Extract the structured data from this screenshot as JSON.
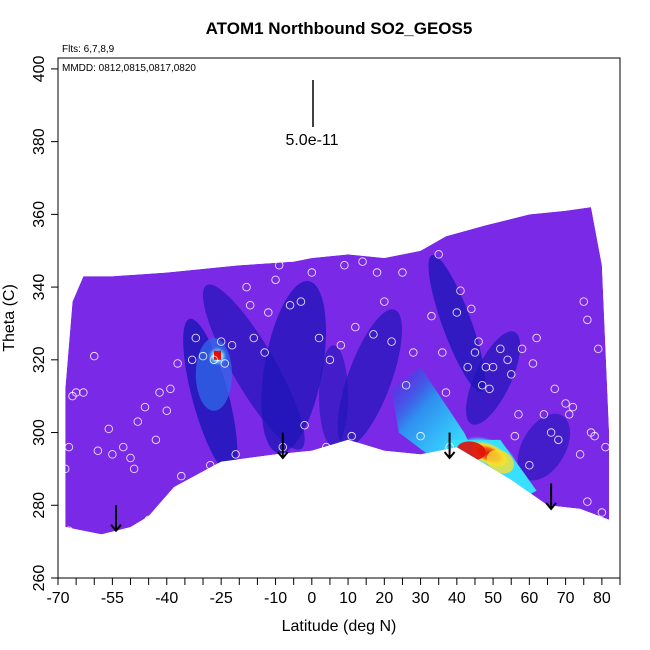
{
  "chart_data": {
    "type": "heatmap",
    "title": "ATOM1 Northbound SO2_GEOS5",
    "xlabel": "Latitude (deg N)",
    "ylabel": "Theta (C)",
    "xlim": [
      -70,
      85
    ],
    "ylim": [
      260,
      403
    ],
    "x_ticks": [
      -70,
      -55,
      -40,
      -25,
      -10,
      0,
      10,
      20,
      30,
      40,
      50,
      60,
      70,
      80
    ],
    "x_minor_ticks": [
      -65,
      -60,
      -50,
      -45,
      -35,
      -30,
      -20,
      -15,
      -5,
      5,
      15,
      25,
      35,
      45,
      55,
      65,
      75,
      85
    ],
    "y_ticks": [
      260,
      280,
      300,
      320,
      340,
      360,
      380,
      400
    ],
    "flights_note": "Flts: 6,7,8,9",
    "dates_note": "MMDD: 0812,0815,0817,0820",
    "scale_bar_label": "5.0e-11",
    "colors": {
      "background_field": "#7a2ae6",
      "low_trough": "#1f16b8",
      "mid": "#2f8ff0",
      "high_cyan": "#37e0ff",
      "peak_yellow": "#f8e030",
      "peak_red": "#e01008"
    },
    "domain_top_boundary": [
      [
        -68,
        312
      ],
      [
        -66,
        336
      ],
      [
        -63,
        343
      ],
      [
        -55,
        343
      ],
      [
        -40,
        344
      ],
      [
        -30,
        345
      ],
      [
        -20,
        346
      ],
      [
        -5,
        347
      ],
      [
        0,
        348
      ],
      [
        10,
        349
      ],
      [
        20,
        348
      ],
      [
        30,
        350
      ],
      [
        37,
        354
      ],
      [
        48,
        357
      ],
      [
        60,
        360
      ],
      [
        70,
        361
      ],
      [
        77,
        362
      ],
      [
        80,
        346
      ],
      [
        82,
        300
      ]
    ],
    "domain_bottom_boundary": [
      [
        82,
        276
      ],
      [
        74,
        279
      ],
      [
        65,
        280
      ],
      [
        55,
        287
      ],
      [
        45,
        293
      ],
      [
        40,
        296
      ],
      [
        30,
        294
      ],
      [
        20,
        295
      ],
      [
        10,
        298
      ],
      [
        0,
        295
      ],
      [
        -10,
        294
      ],
      [
        -25,
        292
      ],
      [
        -38,
        285
      ],
      [
        -45,
        277
      ],
      [
        -50,
        274
      ],
      [
        -58,
        272
      ],
      [
        -68,
        274
      ]
    ],
    "arrows": [
      {
        "lat": -54,
        "theta": 280
      },
      {
        "lat": -8,
        "theta": 300
      },
      {
        "lat": 38,
        "theta": 300
      },
      {
        "lat": 66,
        "theta": 286
      }
    ],
    "observation_points": [
      [
        -67,
        273
      ],
      [
        -68,
        290
      ],
      [
        -67,
        296
      ],
      [
        -66,
        310
      ],
      [
        -65,
        311
      ],
      [
        -63,
        311
      ],
      [
        -60,
        321
      ],
      [
        -59,
        295
      ],
      [
        -56,
        301
      ],
      [
        -55,
        294
      ],
      [
        -52,
        296
      ],
      [
        -50,
        293
      ],
      [
        -49,
        290
      ],
      [
        -48,
        303
      ],
      [
        -46,
        307
      ],
      [
        -45,
        276
      ],
      [
        -43,
        298
      ],
      [
        -42,
        311
      ],
      [
        -40,
        306
      ],
      [
        -39,
        312
      ],
      [
        -37,
        319
      ],
      [
        -36,
        288
      ],
      [
        -33,
        320
      ],
      [
        -32,
        326
      ],
      [
        -30,
        321
      ],
      [
        -28,
        291
      ],
      [
        -27,
        320
      ],
      [
        -25,
        325
      ],
      [
        -24,
        319
      ],
      [
        -22,
        324
      ],
      [
        -21,
        294
      ],
      [
        -18,
        340
      ],
      [
        -17,
        335
      ],
      [
        -16,
        326
      ],
      [
        -13,
        322
      ],
      [
        -12,
        333
      ],
      [
        -10,
        342
      ],
      [
        -9,
        346
      ],
      [
        -8,
        296
      ],
      [
        -6,
        335
      ],
      [
        -3,
        336
      ],
      [
        0,
        344
      ],
      [
        -2,
        302
      ],
      [
        2,
        326
      ],
      [
        4,
        296
      ],
      [
        5,
        320
      ],
      [
        8,
        324
      ],
      [
        9,
        346
      ],
      [
        11,
        299
      ],
      [
        12,
        329
      ],
      [
        14,
        347
      ],
      [
        17,
        327
      ],
      [
        18,
        344
      ],
      [
        20,
        336
      ],
      [
        22,
        325
      ],
      [
        25,
        344
      ],
      [
        26,
        313
      ],
      [
        28,
        322
      ],
      [
        30,
        299
      ],
      [
        33,
        332
      ],
      [
        35,
        349
      ],
      [
        36,
        322
      ],
      [
        37,
        311
      ],
      [
        38,
        296
      ],
      [
        40,
        333
      ],
      [
        41,
        339
      ],
      [
        43,
        318
      ],
      [
        44,
        334
      ],
      [
        45,
        322
      ],
      [
        46,
        325
      ],
      [
        47,
        313
      ],
      [
        48,
        318
      ],
      [
        49,
        312
      ],
      [
        50,
        318
      ],
      [
        52,
        323
      ],
      [
        54,
        320
      ],
      [
        55,
        316
      ],
      [
        56,
        299
      ],
      [
        57,
        305
      ],
      [
        58,
        323
      ],
      [
        60,
        291
      ],
      [
        61,
        319
      ],
      [
        62,
        326
      ],
      [
        64,
        305
      ],
      [
        66,
        300
      ],
      [
        67,
        312
      ],
      [
        68,
        298
      ],
      [
        70,
        308
      ],
      [
        71,
        305
      ],
      [
        72,
        307
      ],
      [
        74,
        294
      ],
      [
        75,
        336
      ],
      [
        76,
        331
      ],
      [
        77,
        300
      ],
      [
        78,
        299
      ],
      [
        79,
        323
      ],
      [
        80,
        278
      ],
      [
        81,
        296
      ],
      [
        76,
        281
      ]
    ]
  }
}
